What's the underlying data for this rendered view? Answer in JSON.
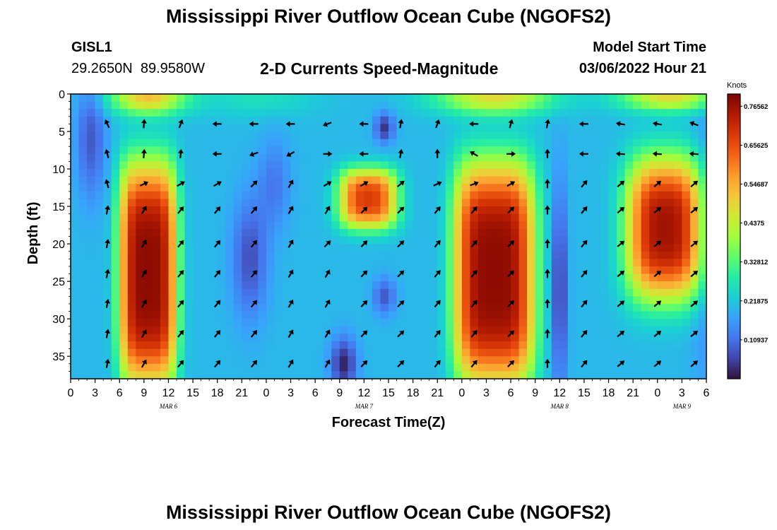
{
  "page_title": "Mississippi River Outflow Ocean Cube (NGOFS2)",
  "station": {
    "id": "GISL1",
    "lat": "29.2650N",
    "lon": "89.9580W"
  },
  "subtitle": "2-D Currents Speed-Magnitude",
  "model_start": {
    "label": "Model Start Time",
    "value": "03/06/2022 Hour 21"
  },
  "footer_title": "Mississippi River Outflow Ocean Cube (NGOFS2)",
  "colors": {
    "colormap": [
      "#30123b",
      "#4145ab",
      "#4675ed",
      "#39a2fc",
      "#1bcfd4",
      "#24eca6",
      "#61fc6c",
      "#a4fc3b",
      "#d1e834",
      "#f3c63a",
      "#fe9b2d",
      "#f36315",
      "#d93806",
      "#b11901",
      "#7a0402"
    ]
  },
  "chart_data": {
    "type": "heatmap",
    "title": "2-D Currents Speed-Magnitude",
    "xlabel": "Forecast Time(Z)",
    "ylabel": "Depth (ft)",
    "ylim": [
      0,
      38
    ],
    "y_ticks": [
      0,
      5,
      10,
      15,
      20,
      25,
      30,
      35
    ],
    "x_hours_range": [
      0,
      78
    ],
    "x_tick_labels": [
      "0",
      "3",
      "6",
      "9",
      "12",
      "15",
      "18",
      "21",
      "0",
      "3",
      "6",
      "9",
      "12",
      "15",
      "18",
      "21",
      "0",
      "3",
      "6",
      "9",
      "12",
      "15",
      "18",
      "21",
      "0",
      "3",
      "6"
    ],
    "date_labels": [
      {
        "text": "MAR 6",
        "hour": 12
      },
      {
        "text": "MAR 7",
        "hour": 36
      },
      {
        "text": "MAR 8",
        "hour": 60
      },
      {
        "text": "MAR 9",
        "hour": 75
      }
    ],
    "colorbar": {
      "unit": "Knots",
      "range": [
        0,
        0.8
      ],
      "tick_values": [
        0.10937,
        0.21875,
        0.32812,
        0.4375,
        0.54687,
        0.65625,
        0.76562
      ],
      "tick_labels": [
        "0.10937",
        "0.21875",
        "0.32812",
        "0.4375",
        "0.54687",
        "0.65625",
        "0.76562"
      ]
    },
    "arrow_times": [
      4.5,
      9,
      13.5,
      18,
      22.5,
      27,
      31.5,
      36,
      40.5,
      45,
      49.5,
      54,
      58.5,
      63,
      67.5,
      72,
      76.5
    ],
    "arrow_depths": [
      4,
      8,
      12,
      15.5,
      20,
      24,
      28,
      32,
      36
    ],
    "arrows": [
      [
        115,
        85,
        70,
        180,
        180,
        180,
        200,
        180,
        80,
        70,
        180,
        75,
        80,
        180,
        170,
        170,
        160
      ],
      [
        105,
        85,
        85,
        180,
        200,
        210,
        0,
        180,
        80,
        90,
        150,
        0,
        90,
        180,
        175,
        175,
        175
      ],
      [
        105,
        25,
        30,
        30,
        45,
        60,
        30,
        30,
        40,
        25,
        20,
        30,
        90,
        50,
        40,
        40,
        40
      ],
      [
        80,
        60,
        50,
        50,
        50,
        60,
        60,
        45,
        45,
        50,
        50,
        45,
        90,
        50,
        40,
        40,
        40
      ],
      [
        80,
        60,
        50,
        50,
        50,
        60,
        45,
        45,
        45,
        50,
        50,
        45,
        90,
        50,
        40,
        40,
        40
      ],
      [
        80,
        60,
        50,
        50,
        50,
        60,
        60,
        45,
        45,
        50,
        50,
        45,
        90,
        50,
        40,
        40,
        40
      ],
      [
        80,
        60,
        50,
        50,
        50,
        60,
        60,
        45,
        45,
        50,
        50,
        45,
        90,
        50,
        40,
        40,
        40
      ],
      [
        80,
        60,
        50,
        50,
        50,
        60,
        60,
        45,
        45,
        50,
        50,
        45,
        90,
        50,
        40,
        40,
        40
      ],
      [
        80,
        60,
        50,
        50,
        50,
        60,
        60,
        45,
        45,
        50,
        50,
        45,
        90,
        50,
        40,
        40,
        40
      ]
    ]
  }
}
